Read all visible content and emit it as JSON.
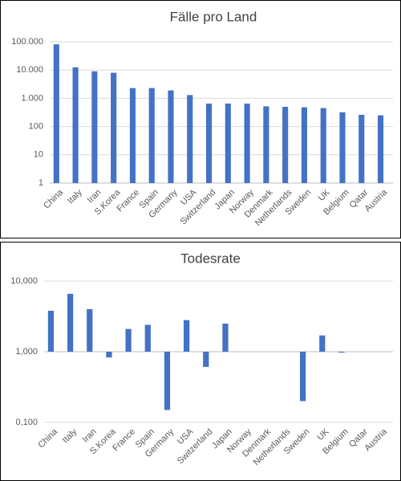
{
  "chart_data": [
    {
      "type": "bar",
      "title": "Fälle pro Land",
      "log_scale": true,
      "grid": true,
      "color": "#4472c4",
      "categories": [
        "China",
        "Italy",
        "Iran",
        "S.Korea",
        "France",
        "Spain",
        "Germany",
        "USA",
        "Switzerland",
        "Japan",
        "Norway",
        "Denmark",
        "Netherlands",
        "Sweden",
        "UK",
        "Belgium",
        "Qatar",
        "Austria"
      ],
      "values": [
        81000,
        12500,
        9000,
        8000,
        2300,
        2300,
        1900,
        1300,
        650,
        650,
        650,
        520,
        500,
        480,
        450,
        320,
        260,
        250
      ],
      "ylim": [
        1,
        100000
      ],
      "yticks": [
        1,
        10,
        100,
        {
          "value": 1000,
          "label": "1.000"
        },
        {
          "value": 10000,
          "label": "10.000"
        },
        {
          "value": 100000,
          "label": "100.000"
        }
      ]
    },
    {
      "type": "bar",
      "title": "Todesrate",
      "log_scale": true,
      "grid": true,
      "color": "#4472c4",
      "categories": [
        "China",
        "Italy",
        "Iran",
        "S.Korea",
        "France",
        "Spain",
        "Germany",
        "USA",
        "Switzerland",
        "Japan",
        "Norway",
        "Denmark",
        "Netherlands",
        "Sweden",
        "UK",
        "Belgium",
        "Qatar",
        "Austria"
      ],
      "values": [
        3.8,
        6.6,
        4.0,
        0.83,
        2.1,
        2.4,
        0.15,
        2.8,
        0.61,
        2.5,
        null,
        null,
        null,
        0.2,
        1.7,
        0.97,
        null,
        null
      ],
      "ylim": [
        0.1,
        10
      ],
      "yticks": [
        {
          "value": 0.1,
          "label": "0,100"
        },
        {
          "value": 1,
          "label": "1,000"
        },
        {
          "value": 10,
          "label": "10,000"
        }
      ]
    }
  ]
}
